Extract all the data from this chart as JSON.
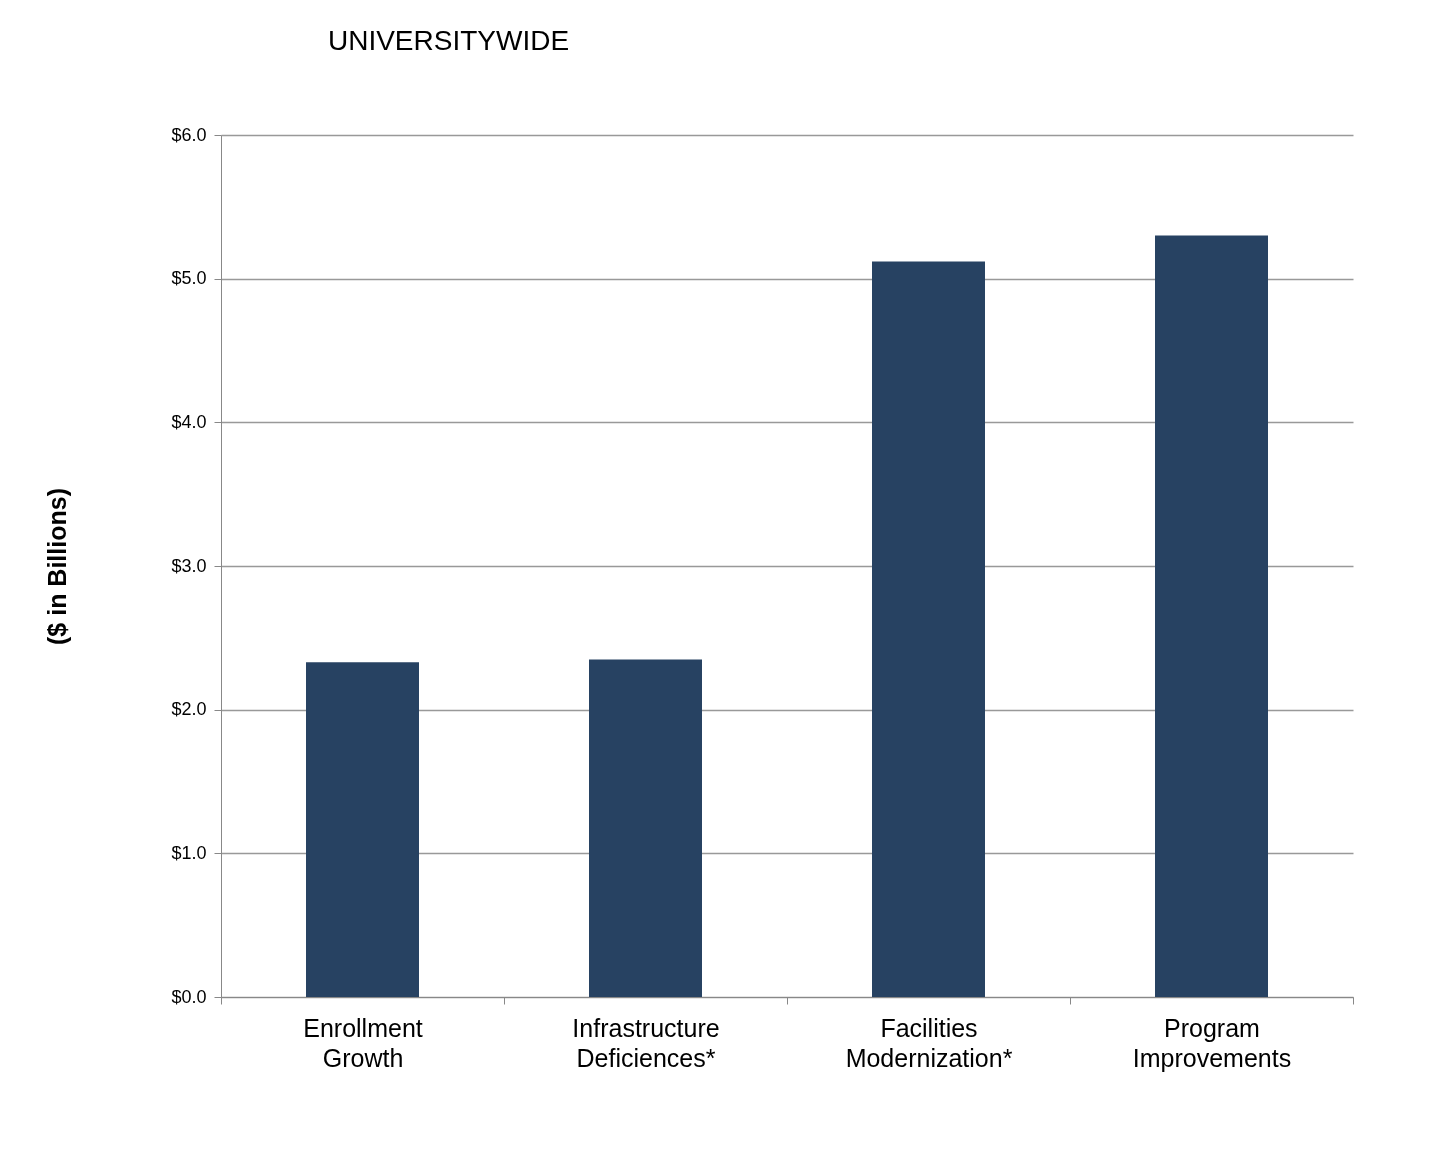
{
  "chart_data": {
    "type": "bar",
    "title": "UNIVERSITYWIDE",
    "ylabel": "($ in Billions)",
    "categories": [
      "Enrollment Growth",
      "Infrastructure Deficiences*",
      "Facilities Modernization*",
      "Program Improvements"
    ],
    "values": [
      2.33,
      2.35,
      5.12,
      5.3
    ],
    "color": "#274262",
    "ylim": [
      0,
      6
    ],
    "yticks": [
      {
        "value": 0,
        "label": "$0.0"
      },
      {
        "value": 1,
        "label": "$1.0"
      },
      {
        "value": 2,
        "label": "$2.0"
      },
      {
        "value": 3,
        "label": "$3.0"
      },
      {
        "value": 4,
        "label": "$4.0"
      },
      {
        "value": 5,
        "label": "$5.0"
      },
      {
        "value": 6,
        "label": "$6.0"
      }
    ],
    "grid": "y"
  }
}
